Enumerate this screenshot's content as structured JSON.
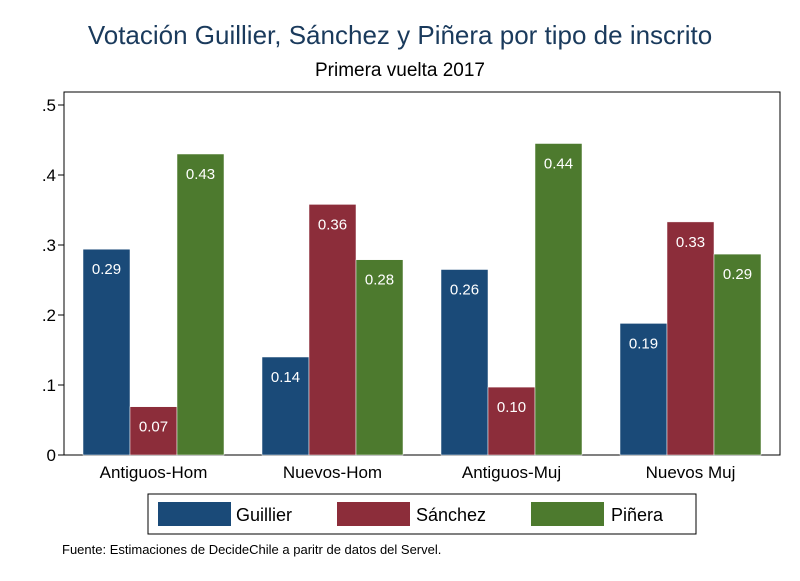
{
  "chart_data": {
    "type": "bar",
    "title": "Votación Guillier, Sánchez y Piñera por tipo de inscrito",
    "subtitle": "Primera vuelta 2017",
    "categories": [
      "Antiguos-Hom",
      "Nuevos-Hom",
      "Antiguos-Muj",
      "Nuevos Muj"
    ],
    "series": [
      {
        "name": "Guillier",
        "color": "#1a4a78",
        "values": [
          0.294,
          0.14,
          0.265,
          0.188
        ],
        "labels": [
          "0.29",
          "0.14",
          "0.26",
          "0.19"
        ]
      },
      {
        "name": "Sánchez",
        "color": "#8c2d3a",
        "values": [
          0.069,
          0.358,
          0.097,
          0.333
        ],
        "labels": [
          "0.07",
          "0.36",
          "0.10",
          "0.33"
        ]
      },
      {
        "name": "Piñera",
        "color": "#4d7a2e",
        "values": [
          0.43,
          0.279,
          0.445,
          0.287
        ],
        "labels": [
          "0.43",
          "0.28",
          "0.44",
          "0.29"
        ]
      }
    ],
    "yticks": [
      0,
      0.1,
      0.2,
      0.3,
      0.4,
      0.5
    ],
    "ytick_labels": [
      "0",
      ".1",
      ".2",
      ".3",
      ".4",
      ".5"
    ],
    "ylim": [
      0,
      0.5
    ],
    "legend_position": "bottom",
    "grid": false
  },
  "source_note": "Fuente: Estimaciones de DecideChile a paritr de datos del Servel."
}
